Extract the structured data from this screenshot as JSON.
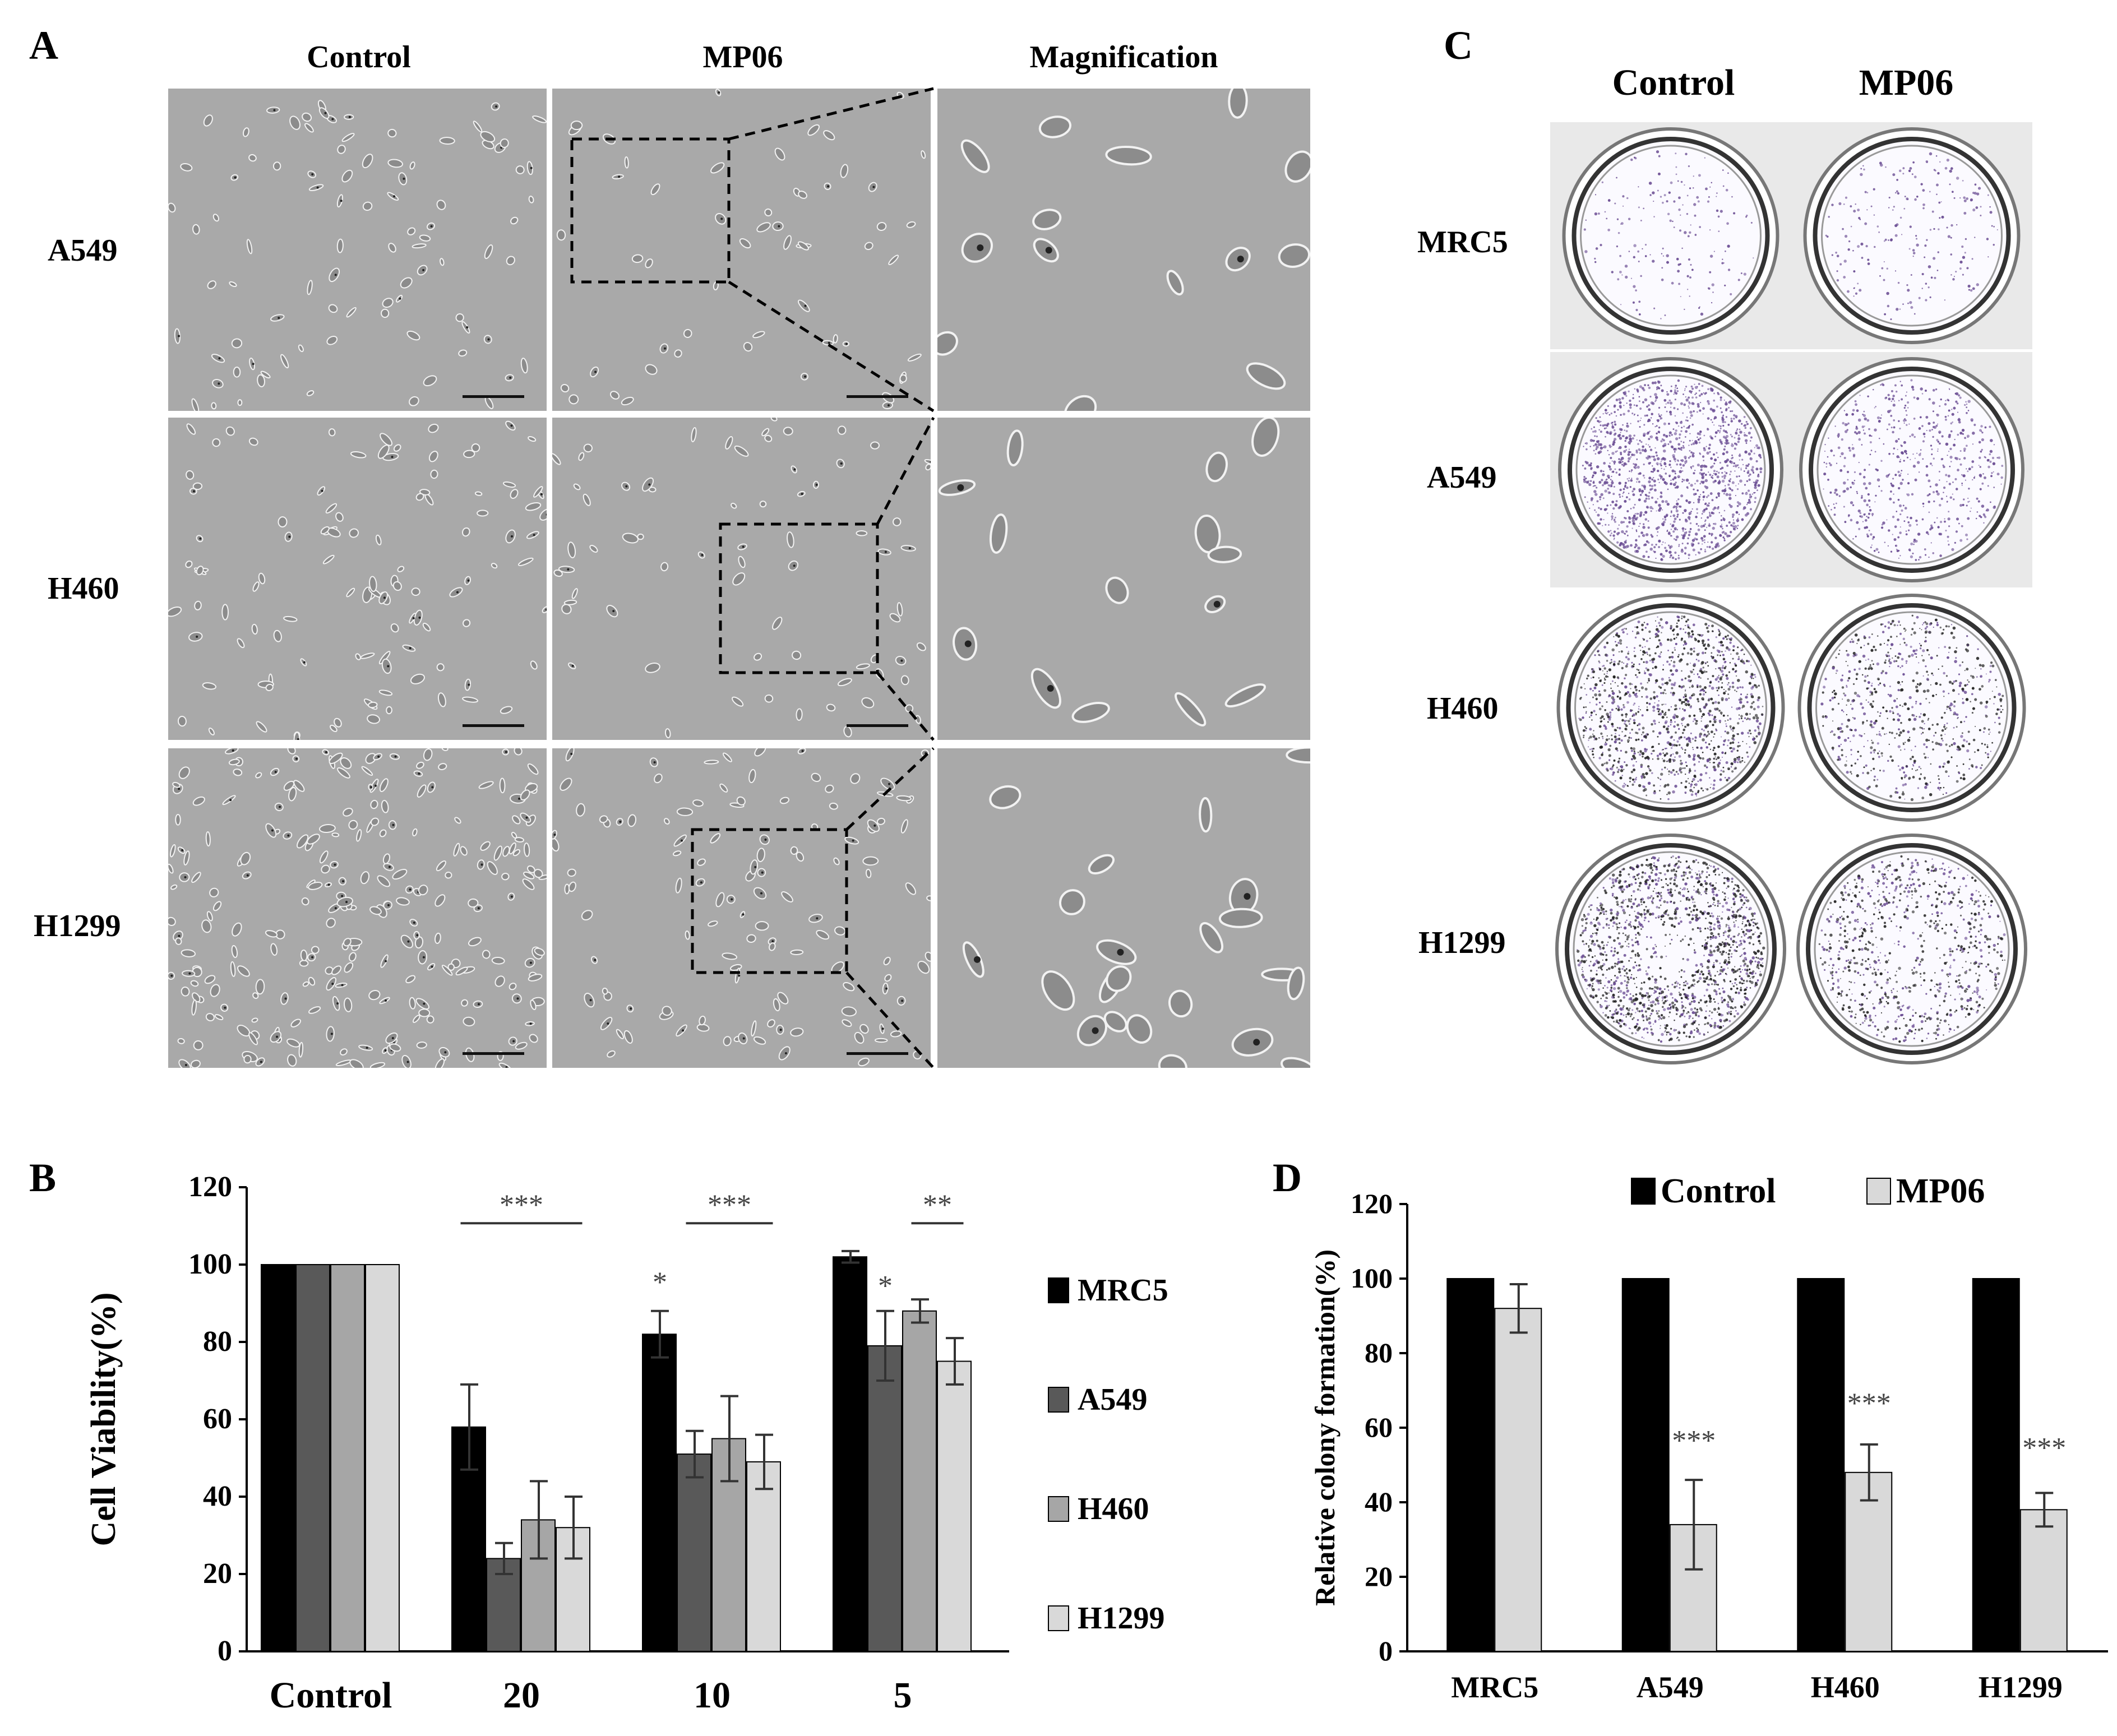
{
  "panels": {
    "A": {
      "letter": "A",
      "columns": [
        "Control",
        "MP06",
        "Magnification"
      ],
      "rows": [
        "A549",
        "H460",
        "H1299"
      ]
    },
    "B": {
      "letter": "B"
    },
    "C": {
      "letter": "C",
      "columns": [
        "Control",
        "MP06"
      ],
      "rows": [
        "MRC5",
        "A549",
        "H460",
        "H1299"
      ]
    },
    "D": {
      "letter": "D"
    }
  },
  "colors": {
    "MRC5": "#000000",
    "A549": "#595959",
    "H460": "#a6a6a6",
    "H1299": "#d9d9d9",
    "Control": "#000000",
    "MP06": "#d9d9d9",
    "micrograph_bg": "#a9a9a9",
    "crystal_violet": "#6a4c93"
  },
  "icons": {
    "micrograph": "phase-contrast-cells-image",
    "plate": "colony-plate-image",
    "scale_bar": "scale-bar"
  },
  "chart_data": [
    {
      "panel": "B",
      "type": "bar",
      "title": "",
      "xlabel": "",
      "ylabel": "Cell Viability(%)",
      "ylim": [
        0,
        120
      ],
      "yticks": [
        0,
        20,
        40,
        60,
        80,
        100,
        120
      ],
      "categories": [
        "Control",
        "20",
        "10",
        "5"
      ],
      "legend_position": "right",
      "series": [
        {
          "name": "MRC5",
          "values": [
            100,
            58,
            82,
            102
          ],
          "errors": [
            0,
            11,
            6,
            1.5
          ]
        },
        {
          "name": "A549",
          "values": [
            100,
            24,
            51,
            79
          ],
          "errors": [
            0,
            4,
            6,
            9
          ]
        },
        {
          "name": "H460",
          "values": [
            100,
            34,
            55,
            88
          ],
          "errors": [
            0,
            10,
            11,
            3
          ]
        },
        {
          "name": "H1299",
          "values": [
            100,
            32,
            49,
            75
          ],
          "errors": [
            0,
            8,
            7,
            6
          ]
        }
      ],
      "annotations": [
        {
          "text": "***",
          "category": "20",
          "bracket": [
            "MRC5",
            "H1299"
          ],
          "y": 113
        },
        {
          "text": "*",
          "category": "10",
          "series": "MRC5",
          "y": 93
        },
        {
          "text": "***",
          "category": "10",
          "bracket": [
            "A549",
            "H1299"
          ],
          "y": 113
        },
        {
          "text": "*",
          "category": "5",
          "series": "A549",
          "y": 92
        },
        {
          "text": "**",
          "category": "5",
          "bracket": [
            "H460",
            "H1299"
          ],
          "y": 113
        }
      ]
    },
    {
      "panel": "D",
      "type": "bar",
      "title": "",
      "xlabel": "",
      "ylabel": "Relative colony formation(%)",
      "ylim": [
        0,
        120
      ],
      "yticks": [
        0,
        20,
        40,
        60,
        80,
        100,
        120
      ],
      "categories": [
        "MRC5",
        "A549",
        "H460",
        "H1299"
      ],
      "legend_position": "top-right",
      "series": [
        {
          "name": "Control",
          "values": [
            100,
            100,
            100,
            100
          ],
          "errors": [
            0,
            0,
            0,
            0
          ]
        },
        {
          "name": "MP06",
          "values": [
            92,
            34,
            48,
            38
          ],
          "errors": [
            6.5,
            12,
            7.5,
            4.5
          ]
        }
      ],
      "annotations": [
        {
          "text": "***",
          "category": "A549",
          "series": "MP06",
          "y": 54
        },
        {
          "text": "***",
          "category": "H460",
          "series": "MP06",
          "y": 64
        },
        {
          "text": "***",
          "category": "H1299",
          "series": "MP06",
          "y": 52
        }
      ]
    }
  ]
}
